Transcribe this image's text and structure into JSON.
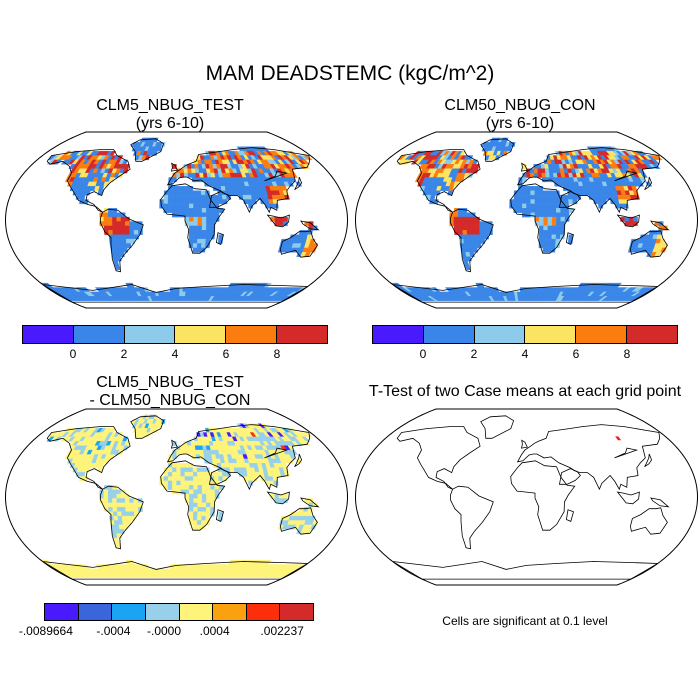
{
  "title": "MAM DEADSTEMC (kgC/m^2)",
  "panels": [
    {
      "id": "test",
      "title_line1": "CLM5_NBUG_TEST",
      "title_line2": "(yrs 6-10)"
    },
    {
      "id": "con",
      "title_line1": "CLM50_NBUG_CON",
      "title_line2": "(yrs 6-10)"
    },
    {
      "id": "diff",
      "title_line1": "CLM5_NBUG_TEST",
      "title_line2": "- CLM50_NBUG_CON"
    },
    {
      "id": "ttest",
      "title_line1": "T-Test of two Case means at each grid point",
      "title_line2": ""
    }
  ],
  "colorbar_main": {
    "colors": [
      "#4a1aff",
      "#3a86e8",
      "#8ccbea",
      "#fbe462",
      "#fb7d10",
      "#d42a2a"
    ],
    "labels": [
      "0",
      "2",
      "4",
      "6",
      "8"
    ]
  },
  "colorbar_diff": {
    "colors": [
      "#4a1aff",
      "#3a66dd",
      "#1ba4f4",
      "#98d0ea",
      "#fef47a",
      "#f9a10f",
      "#fd2e0c",
      "#d42a2a"
    ],
    "labels": [
      "-.0089664",
      "-.0004",
      "-.0000",
      ".0004",
      ".002237"
    ]
  },
  "ttest_note": "Cells are significant at 0.1 level"
}
